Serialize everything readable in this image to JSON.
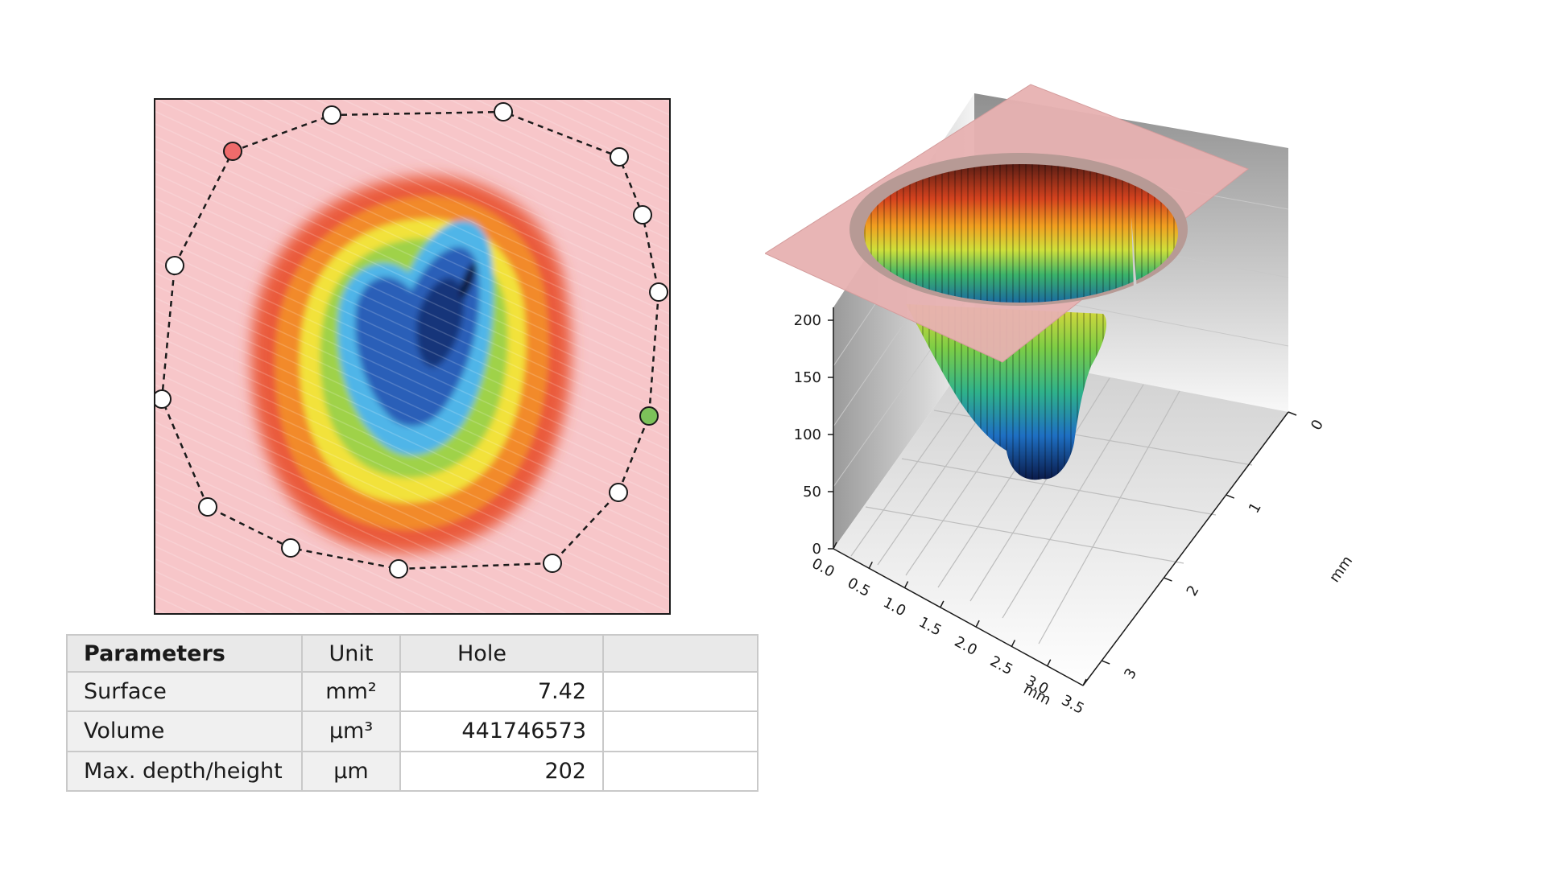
{
  "table": {
    "headers": [
      "Parameters",
      "Unit",
      "Hole"
    ],
    "rows": [
      {
        "name": "Surface",
        "unit": "mm²",
        "value": "7.42"
      },
      {
        "name": "Volume",
        "unit": "µm³",
        "value": "441746573"
      },
      {
        "name": "Max. depth/height",
        "unit": "µm",
        "value": "202"
      }
    ]
  },
  "chart_data": [
    {
      "type": "heatmap",
      "title": "",
      "description_of_colormap": [
        "blue",
        "light-blue",
        "green",
        "yellow",
        "orange",
        "red",
        "pink"
      ],
      "region_markers": 14,
      "selected_markers": {
        "red": 1,
        "green": 1
      }
    },
    {
      "type": "surface",
      "title": "",
      "x_axis": {
        "label": "mm",
        "ticks": [
          "0.0",
          "0.5",
          "1.0",
          "1.5",
          "2.0",
          "2.5",
          "3.0",
          "3.5"
        ]
      },
      "y_axis": {
        "label": "mm",
        "ticks": [
          "0",
          "1",
          "2",
          "3"
        ]
      },
      "z_axis": {
        "label": "",
        "ticks": [
          "0",
          "50",
          "100",
          "150",
          "200"
        ]
      },
      "max_depth_um": 202
    }
  ]
}
